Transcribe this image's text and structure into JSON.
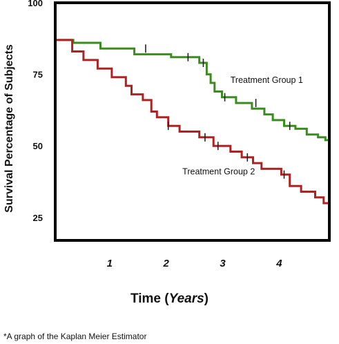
{
  "chart_data": {
    "type": "line",
    "step": true,
    "xlabel_main": "Time",
    "xlabel_unit": "Years",
    "ylabel": "Survival Percentage of Subjects",
    "xlim": [
      0,
      4.85
    ],
    "ylim": [
      17,
      100
    ],
    "yticks": [
      100,
      75,
      50,
      25
    ],
    "xticks": [
      1,
      2,
      3,
      4
    ],
    "grid": false,
    "legend": "inline labels",
    "series": [
      {
        "name": "Treatment Group 1",
        "color": "#3a8c1f",
        "points": [
          [
            0,
            87
          ],
          [
            0.32,
            87
          ],
          [
            0.32,
            86
          ],
          [
            0.8,
            86
          ],
          [
            0.8,
            84
          ],
          [
            1.4,
            84
          ],
          [
            1.4,
            82
          ],
          [
            2.05,
            82
          ],
          [
            2.05,
            81
          ],
          [
            2.55,
            81
          ],
          [
            2.55,
            79
          ],
          [
            2.68,
            79
          ],
          [
            2.68,
            75
          ],
          [
            2.75,
            75
          ],
          [
            2.75,
            72
          ],
          [
            2.82,
            72
          ],
          [
            2.82,
            69
          ],
          [
            2.95,
            69
          ],
          [
            2.95,
            67
          ],
          [
            3.2,
            67
          ],
          [
            3.2,
            65
          ],
          [
            3.48,
            65
          ],
          [
            3.48,
            63
          ],
          [
            3.7,
            63
          ],
          [
            3.7,
            61
          ],
          [
            3.85,
            61
          ],
          [
            3.85,
            59
          ],
          [
            4.05,
            59
          ],
          [
            4.05,
            57
          ],
          [
            4.25,
            57
          ],
          [
            4.25,
            56
          ],
          [
            4.45,
            56
          ],
          [
            4.45,
            54
          ],
          [
            4.65,
            54
          ],
          [
            4.65,
            53
          ],
          [
            4.78,
            53
          ],
          [
            4.78,
            52
          ],
          [
            4.85,
            52
          ]
        ],
        "censors": [
          [
            1.6,
            84
          ],
          [
            2.35,
            81
          ],
          [
            2.62,
            79
          ],
          [
            3.0,
            67
          ],
          [
            3.55,
            65
          ],
          [
            4.15,
            57
          ]
        ]
      },
      {
        "name": "Treatment Group 2",
        "color": "#b02222",
        "points": [
          [
            0,
            87
          ],
          [
            0.3,
            87
          ],
          [
            0.3,
            83
          ],
          [
            0.5,
            83
          ],
          [
            0.5,
            80
          ],
          [
            0.75,
            80
          ],
          [
            0.75,
            77
          ],
          [
            1.0,
            77
          ],
          [
            1.0,
            74
          ],
          [
            1.25,
            74
          ],
          [
            1.25,
            71
          ],
          [
            1.35,
            71
          ],
          [
            1.35,
            68
          ],
          [
            1.55,
            68
          ],
          [
            1.55,
            66
          ],
          [
            1.7,
            66
          ],
          [
            1.7,
            62
          ],
          [
            1.8,
            62
          ],
          [
            1.8,
            60
          ],
          [
            2.0,
            60
          ],
          [
            2.0,
            57
          ],
          [
            2.2,
            57
          ],
          [
            2.2,
            55
          ],
          [
            2.55,
            55
          ],
          [
            2.55,
            53
          ],
          [
            2.8,
            53
          ],
          [
            2.8,
            50
          ],
          [
            3.1,
            50
          ],
          [
            3.1,
            48
          ],
          [
            3.3,
            48
          ],
          [
            3.3,
            46
          ],
          [
            3.5,
            46
          ],
          [
            3.5,
            44
          ],
          [
            3.65,
            44
          ],
          [
            3.65,
            42
          ],
          [
            4.0,
            42
          ],
          [
            4.0,
            40
          ],
          [
            4.15,
            40
          ],
          [
            4.15,
            36
          ],
          [
            4.35,
            36
          ],
          [
            4.35,
            34
          ],
          [
            4.6,
            34
          ],
          [
            4.6,
            32
          ],
          [
            4.75,
            32
          ],
          [
            4.75,
            30
          ],
          [
            4.85,
            30
          ]
        ],
        "censors": [
          [
            2.0,
            57
          ],
          [
            2.65,
            53
          ],
          [
            2.88,
            50
          ],
          [
            3.4,
            46
          ],
          [
            4.05,
            40
          ]
        ]
      }
    ],
    "footnote": "*A graph of the Kaplan Meier Estimator"
  }
}
